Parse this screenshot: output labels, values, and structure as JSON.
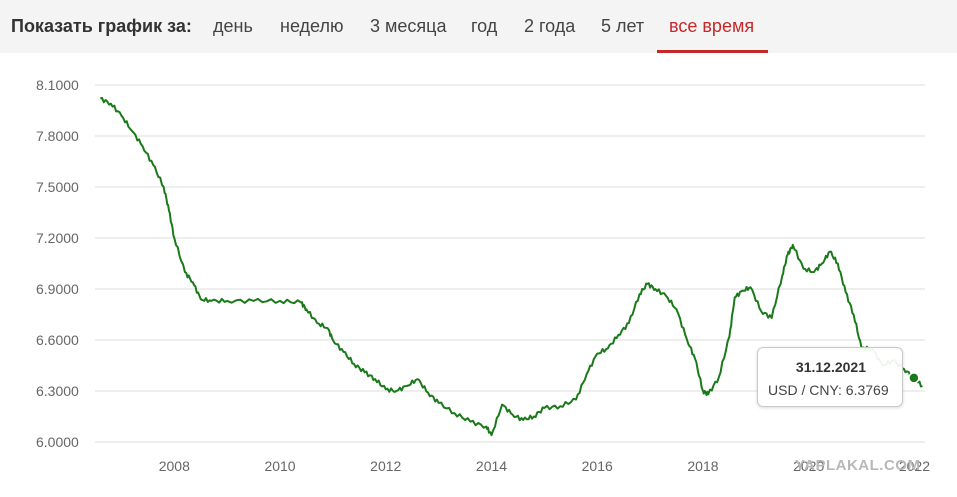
{
  "header": {
    "label": "Показать график за:",
    "tabs": [
      {
        "label": "день",
        "active": false
      },
      {
        "label": "неделю",
        "active": false
      },
      {
        "label": "3 месяца",
        "active": false
      },
      {
        "label": "год",
        "active": false
      },
      {
        "label": "2 года",
        "active": false
      },
      {
        "label": "5 лет",
        "active": false
      },
      {
        "label": "все время",
        "active": true
      }
    ],
    "active_color": "#c62828"
  },
  "tooltip": {
    "date": "31.12.2021",
    "value_text": "USD / CNY: 6.3769"
  },
  "watermark": "YAPLAKAL.COM",
  "chart_data": {
    "type": "line",
    "title": "",
    "xlabel": "",
    "ylabel": "",
    "x_ticks": [
      "2008",
      "2010",
      "2012",
      "2014",
      "2016",
      "2018",
      "2020",
      "2022"
    ],
    "y_ticks": [
      "6.0000",
      "6.3000",
      "6.6000",
      "6.9000",
      "7.2000",
      "7.5000",
      "7.8000",
      "8.1000"
    ],
    "ylim": [
      6.0,
      8.1
    ],
    "xlim": [
      2006.5,
      2022.2
    ],
    "grid": true,
    "line_color": "#1a7a1a",
    "series": [
      {
        "name": "USD / CNY",
        "x": [
          2006.6,
          2006.8,
          2007.0,
          2007.2,
          2007.4,
          2007.6,
          2007.8,
          2007.9,
          2008.0,
          2008.2,
          2008.35,
          2008.5,
          2008.7,
          2009.0,
          2009.5,
          2010.0,
          2010.4,
          2010.5,
          2010.7,
          2010.9,
          2011.0,
          2011.2,
          2011.4,
          2011.6,
          2011.8,
          2012.0,
          2012.2,
          2012.4,
          2012.6,
          2012.8,
          2013.0,
          2013.3,
          2013.6,
          2013.9,
          2014.0,
          2014.2,
          2014.4,
          2014.6,
          2014.8,
          2015.0,
          2015.3,
          2015.6,
          2015.8,
          2016.0,
          2016.2,
          2016.4,
          2016.6,
          2016.8,
          2016.95,
          2017.1,
          2017.3,
          2017.5,
          2017.7,
          2017.85,
          2018.0,
          2018.1,
          2018.3,
          2018.5,
          2018.6,
          2018.75,
          2018.9,
          2019.1,
          2019.3,
          2019.5,
          2019.6,
          2019.7,
          2019.9,
          2020.1,
          2020.25,
          2020.4,
          2020.55,
          2020.7,
          2020.85,
          2021.0,
          2021.2,
          2021.4,
          2021.6,
          2021.8,
          2021.99,
          2022.15
        ],
        "y": [
          8.02,
          7.99,
          7.92,
          7.83,
          7.74,
          7.63,
          7.5,
          7.36,
          7.2,
          7.0,
          6.94,
          6.84,
          6.83,
          6.83,
          6.83,
          6.83,
          6.82,
          6.78,
          6.7,
          6.67,
          6.6,
          6.53,
          6.46,
          6.41,
          6.37,
          6.31,
          6.3,
          6.33,
          6.37,
          6.29,
          6.23,
          6.17,
          6.12,
          6.09,
          6.04,
          6.22,
          6.16,
          6.13,
          6.15,
          6.2,
          6.21,
          6.25,
          6.4,
          6.52,
          6.55,
          6.63,
          6.7,
          6.87,
          6.93,
          6.9,
          6.86,
          6.78,
          6.6,
          6.49,
          6.3,
          6.28,
          6.38,
          6.62,
          6.85,
          6.89,
          6.91,
          6.77,
          6.73,
          6.98,
          7.1,
          7.16,
          7.02,
          7.0,
          7.05,
          7.12,
          7.05,
          6.88,
          6.75,
          6.55,
          6.55,
          6.45,
          6.48,
          6.43,
          6.3769,
          6.33
        ]
      }
    ],
    "highlight_point": {
      "x": 2021.99,
      "y": 6.3769,
      "label": "31.12.2021"
    }
  }
}
